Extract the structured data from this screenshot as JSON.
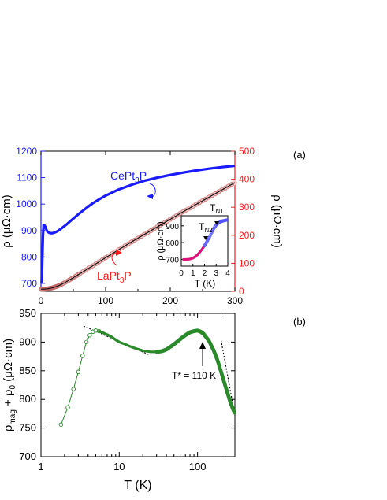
{
  "figure": {
    "panel_a_label": "(a)",
    "panel_b_label": "(b)",
    "colors": {
      "cept3p": "#1a1aff",
      "lapt3p_axis": "#ff1a1a",
      "lapt3p_fill": "#f1c9c9",
      "fit": "#111111",
      "inset_mag": "#e0107a",
      "inset_blue": "#4d4dff",
      "magnetic": "#2a8a2a",
      "axis": "#000000"
    }
  },
  "chart_data": [
    {
      "id": "panel_a",
      "type": "line",
      "xlabel": "",
      "ylabel_left": "ρ (μΩ·cm)",
      "ylabel_right": "ρ (μΩ·cm)",
      "xlim": [
        0,
        300
      ],
      "ylim_left": [
        670,
        1200
      ],
      "ylim_right": [
        0,
        500
      ],
      "x_ticks": [
        0,
        100,
        200,
        300
      ],
      "y_ticks_left": [
        700,
        800,
        900,
        1000,
        1100,
        1200
      ],
      "y_ticks_right": [
        0,
        100,
        200,
        300,
        400,
        500
      ],
      "annotations": {
        "cept3p_label": "CePt",
        "cept3p_sub": "3",
        "cept3p_tail": "P",
        "lapt3p_label": "LaPt",
        "lapt3p_sub": "3",
        "lapt3p_tail": "P"
      },
      "series": [
        {
          "name": "CePt3P",
          "axis": "left",
          "x": [
            1,
            2,
            3,
            4,
            6,
            8,
            10,
            14,
            18,
            22,
            26,
            30,
            40,
            50,
            60,
            70,
            80,
            90,
            100,
            120,
            140,
            160,
            180,
            200,
            220,
            240,
            260,
            280,
            300
          ],
          "y": [
            700,
            780,
            880,
            920,
            918,
            905,
            895,
            890,
            890,
            893,
            898,
            905,
            924,
            945,
            966,
            985,
            1003,
            1018,
            1032,
            1055,
            1073,
            1088,
            1100,
            1110,
            1119,
            1127,
            1134,
            1140,
            1145
          ]
        },
        {
          "name": "LaPt3P",
          "axis": "right",
          "x": [
            0,
            5,
            10,
            15,
            20,
            25,
            30,
            40,
            50,
            60,
            80,
            100,
            120,
            140,
            160,
            180,
            200,
            220,
            240,
            260,
            280,
            300
          ],
          "y": [
            8,
            8,
            9,
            11,
            14,
            18,
            23,
            35,
            49,
            63,
            91,
            120,
            148,
            176,
            203,
            230,
            257,
            284,
            310,
            336,
            362,
            388
          ]
        }
      ]
    },
    {
      "id": "panel_a_inset",
      "type": "scatter",
      "xlabel": "T (K)",
      "ylabel": "ρ (μΩ·cm)",
      "xlim": [
        0,
        4
      ],
      "ylim": [
        660,
        960
      ],
      "x_ticks": [
        0,
        1,
        2,
        3,
        4
      ],
      "y_ticks": [
        700,
        800,
        900
      ],
      "annotations": {
        "tn1": "T",
        "tn1_sub": "N1",
        "tn2": "T",
        "tn2_sub": "N2"
      },
      "series": [
        {
          "name": "",
          "x": [
            0.2,
            0.4,
            0.6,
            0.8,
            1.0,
            1.2,
            1.4,
            1.6,
            1.8,
            2.0,
            2.2,
            2.4,
            2.6,
            2.8,
            3.0,
            3.2,
            3.4,
            3.6,
            3.8,
            4.0
          ],
          "y": [
            700,
            700,
            701,
            703,
            708,
            716,
            728,
            744,
            762,
            782,
            805,
            830,
            858,
            885,
            905,
            918,
            925,
            930,
            933,
            935
          ]
        }
      ]
    },
    {
      "id": "panel_b",
      "type": "scatter",
      "xlabel": "T (K)",
      "ylabel": "ρ",
      "ylabel_sub1": "mag",
      "ylabel_mid": " + ρ",
      "ylabel_sub2": "0",
      "ylabel_tail": " (μΩ·cm)",
      "x_scale": "log",
      "xlim": [
        1,
        300
      ],
      "ylim": [
        700,
        950
      ],
      "x_ticks": [
        1,
        10,
        100
      ],
      "y_ticks": [
        700,
        750,
        800,
        850,
        900,
        950
      ],
      "annotations": {
        "tstar": "T* = 110 K"
      },
      "series": [
        {
          "name": "",
          "x": [
            1.8,
            2.2,
            2.6,
            3.0,
            3.4,
            3.8,
            4.2,
            4.6,
            5.0,
            5.5,
            6,
            7,
            8,
            9,
            10,
            12,
            14,
            17,
            20,
            25,
            30,
            35,
            40,
            50,
            60,
            70,
            80,
            90,
            100,
            110,
            120,
            140,
            160,
            180,
            200,
            220,
            240,
            260,
            280,
            300
          ],
          "y": [
            756,
            786,
            818,
            848,
            876,
            900,
            912,
            918,
            920,
            919,
            917,
            913,
            909,
            904,
            900,
            896,
            892,
            888,
            885,
            883,
            883,
            884,
            887,
            896,
            905,
            912,
            917,
            919,
            920,
            918,
            914,
            902,
            886,
            868,
            848,
            829,
            812,
            797,
            785,
            776
          ]
        }
      ]
    }
  ]
}
